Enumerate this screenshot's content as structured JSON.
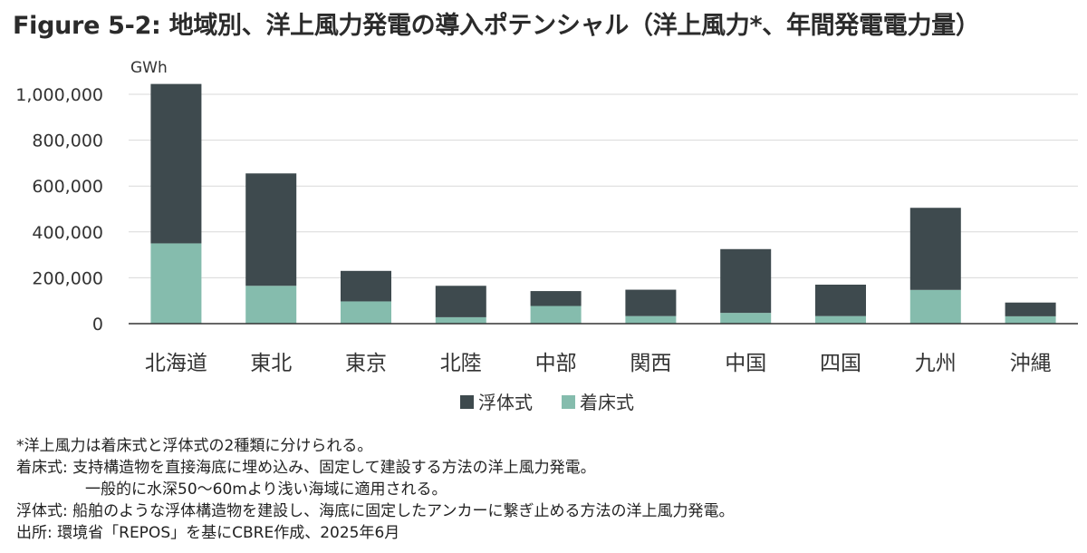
{
  "title": "Figure 5-2: 地域別、洋上風力発電の導入ポテンシャル（洋上風力*、年間発電電力量）",
  "colors": {
    "floating": "#3e4a4e",
    "fixed": "#85bcad",
    "grid": "#d9d9d9",
    "axis": "#333333"
  },
  "chart_data": {
    "type": "bar",
    "stacked": true,
    "ylabel": "GWh",
    "ylim": [
      0,
      1000000
    ],
    "yticks": [
      0,
      200000,
      400000,
      600000,
      800000,
      1000000
    ],
    "ytick_labels": [
      "0",
      "200,000",
      "400,000",
      "600,000",
      "800,000",
      "1,000,000"
    ],
    "categories": [
      "北海道",
      "東北",
      "東京",
      "北陸",
      "中部",
      "関西",
      "中国",
      "四国",
      "九州",
      "沖縄"
    ],
    "series": [
      {
        "name": "着床式",
        "values": [
          350000,
          165000,
          97000,
          28000,
          77000,
          33000,
          47000,
          33000,
          147000,
          32000
        ]
      },
      {
        "name": "浮体式",
        "values": [
          695000,
          490000,
          133000,
          137000,
          65000,
          115000,
          278000,
          137000,
          358000,
          60000
        ]
      }
    ],
    "legend": [
      "浮体式",
      "着床式"
    ],
    "legend_position": "bottom-center"
  },
  "notes": {
    "line1": "*洋上風力は着床式と浮体式の2種類に分けられる。",
    "line2": "着床式: 支持構造物を直接海底に埋め込み、固定して建設する方法の洋上風力発電。",
    "line3": "一般的に水深50〜60mより浅い海域に適用される。",
    "line4": "浮体式: 船舶のような浮体構造物を建設し、海底に固定したアンカーに繋ぎ止める方法の洋上風力発電。",
    "line5": "出所: 環境省「REPOS」を基にCBRE作成、2025年6月"
  }
}
